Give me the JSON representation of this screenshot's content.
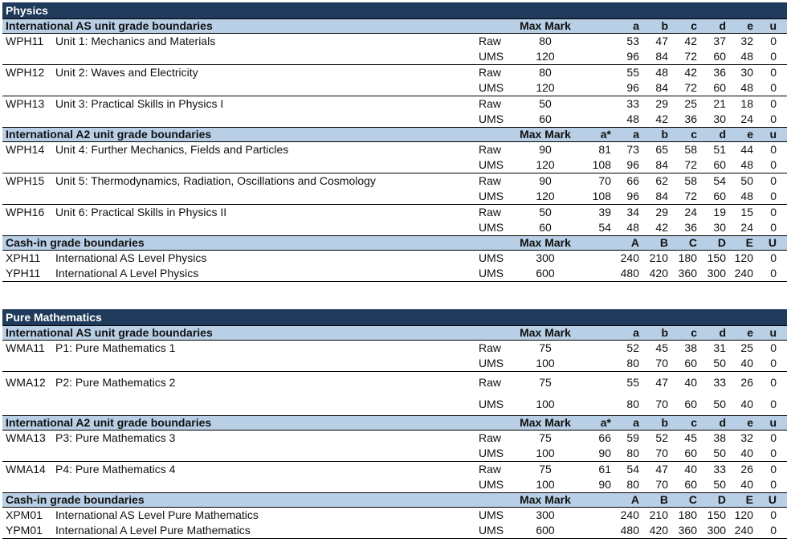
{
  "sections": [
    {
      "title": "Physics",
      "groups": [
        {
          "kind": "unit",
          "heading": "International AS unit grade boundaries",
          "max_label": "Max Mark",
          "grade_labels": [
            "",
            "a",
            "b",
            "c",
            "d",
            "e",
            "u"
          ],
          "units": [
            {
              "code": "WPH11",
              "name": "Unit 1: Mechanics and Materials",
              "rows": [
                {
                  "type": "Raw",
                  "max": "80",
                  "astar": "",
                  "grades": [
                    "53",
                    "47",
                    "42",
                    "37",
                    "32",
                    "0"
                  ]
                },
                {
                  "type": "UMS",
                  "max": "120",
                  "astar": "",
                  "grades": [
                    "96",
                    "84",
                    "72",
                    "60",
                    "48",
                    "0"
                  ]
                }
              ]
            },
            {
              "code": "WPH12",
              "name": "Unit 2: Waves and Electricity",
              "rows": [
                {
                  "type": "Raw",
                  "max": "80",
                  "astar": "",
                  "grades": [
                    "55",
                    "48",
                    "42",
                    "36",
                    "30",
                    "0"
                  ]
                },
                {
                  "type": "UMS",
                  "max": "120",
                  "astar": "",
                  "grades": [
                    "96",
                    "84",
                    "72",
                    "60",
                    "48",
                    "0"
                  ]
                }
              ]
            },
            {
              "code": "WPH13",
              "name": "Unit 3: Practical Skills in Physics I",
              "rows": [
                {
                  "type": "Raw",
                  "max": "50",
                  "astar": "",
                  "grades": [
                    "33",
                    "29",
                    "25",
                    "21",
                    "18",
                    "0"
                  ]
                },
                {
                  "type": "UMS",
                  "max": "60",
                  "astar": "",
                  "grades": [
                    "48",
                    "42",
                    "36",
                    "30",
                    "24",
                    "0"
                  ]
                }
              ]
            }
          ]
        },
        {
          "kind": "unit",
          "heading": "International A2 unit grade boundaries",
          "max_label": "Max Mark",
          "grade_labels": [
            "a*",
            "a",
            "b",
            "c",
            "d",
            "e",
            "u"
          ],
          "units": [
            {
              "code": "WPH14",
              "name": "Unit 4: Further Mechanics, Fields and Particles",
              "rows": [
                {
                  "type": "Raw",
                  "max": "90",
                  "astar": "81",
                  "grades": [
                    "73",
                    "65",
                    "58",
                    "51",
                    "44",
                    "0"
                  ]
                },
                {
                  "type": "UMS",
                  "max": "120",
                  "astar": "108",
                  "grades": [
                    "96",
                    "84",
                    "72",
                    "60",
                    "48",
                    "0"
                  ]
                }
              ]
            },
            {
              "code": "WPH15",
              "name": "Unit 5: Thermodynamics, Radiation, Oscillations and Cosmology",
              "rows": [
                {
                  "type": "Raw",
                  "max": "90",
                  "astar": "70",
                  "grades": [
                    "66",
                    "62",
                    "58",
                    "54",
                    "50",
                    "0"
                  ]
                },
                {
                  "type": "UMS",
                  "max": "120",
                  "astar": "108",
                  "grades": [
                    "96",
                    "84",
                    "72",
                    "60",
                    "48",
                    "0"
                  ]
                }
              ]
            },
            {
              "code": "WPH16",
              "name": "Unit 6: Practical Skills in Physics II",
              "rows": [
                {
                  "type": "Raw",
                  "max": "50",
                  "astar": "39",
                  "grades": [
                    "34",
                    "29",
                    "24",
                    "19",
                    "15",
                    "0"
                  ]
                },
                {
                  "type": "UMS",
                  "max": "60",
                  "astar": "54",
                  "grades": [
                    "48",
                    "42",
                    "36",
                    "30",
                    "24",
                    "0"
                  ]
                }
              ]
            }
          ]
        },
        {
          "kind": "cashin",
          "heading": "Cash-in grade boundaries",
          "max_label": "Max Mark",
          "grade_labels": [
            "",
            "A",
            "B",
            "C",
            "D",
            "E",
            "U"
          ],
          "rows": [
            {
              "code": "XPH11",
              "name": "International AS Level Physics",
              "type": "UMS",
              "max": "300",
              "grades": [
                "240",
                "210",
                "180",
                "150",
                "120",
                "0"
              ]
            },
            {
              "code": "YPH11",
              "name": "International A Level Physics",
              "type": "UMS",
              "max": "600",
              "grades": [
                "480",
                "420",
                "360",
                "300",
                "240",
                "0"
              ]
            }
          ]
        }
      ]
    },
    {
      "title": "Pure Mathematics",
      "groups": [
        {
          "kind": "unit",
          "heading": "International AS unit grade boundaries",
          "max_label": "Max Mark",
          "grade_labels": [
            "",
            "a",
            "b",
            "c",
            "d",
            "e",
            "u"
          ],
          "units": [
            {
              "code": "WMA11",
              "name": "P1: Pure Mathematics 1",
              "rows": [
                {
                  "type": "Raw",
                  "max": "75",
                  "astar": "",
                  "grades": [
                    "52",
                    "45",
                    "38",
                    "31",
                    "25",
                    "0"
                  ]
                },
                {
                  "type": "UMS",
                  "max": "100",
                  "astar": "",
                  "grades": [
                    "80",
                    "70",
                    "60",
                    "50",
                    "40",
                    "0"
                  ]
                }
              ]
            },
            {
              "code": "WMA12",
              "name": "P2: Pure Mathematics 2",
              "rows": [
                {
                  "type": "Raw",
                  "max": "75",
                  "astar": "",
                  "grades": [
                    "55",
                    "47",
                    "40",
                    "33",
                    "26",
                    "0"
                  ]
                },
                {
                  "type": "UMS",
                  "max": "100",
                  "astar": "",
                  "grades": [
                    "80",
                    "70",
                    "60",
                    "50",
                    "40",
                    "0"
                  ]
                }
              ]
            }
          ]
        },
        {
          "kind": "unit",
          "heading": "International A2 unit grade boundaries",
          "max_label": "Max Mark",
          "grade_labels": [
            "a*",
            "a",
            "b",
            "c",
            "d",
            "e",
            "u"
          ],
          "units": [
            {
              "code": "WMA13",
              "name": "P3: Pure Mathematics 3",
              "rows": [
                {
                  "type": "Raw",
                  "max": "75",
                  "astar": "66",
                  "grades": [
                    "59",
                    "52",
                    "45",
                    "38",
                    "32",
                    "0"
                  ]
                },
                {
                  "type": "UMS",
                  "max": "100",
                  "astar": "90",
                  "grades": [
                    "80",
                    "70",
                    "60",
                    "50",
                    "40",
                    "0"
                  ]
                }
              ]
            },
            {
              "code": "WMA14",
              "name": "P4: Pure Mathematics 4",
              "rows": [
                {
                  "type": "Raw",
                  "max": "75",
                  "astar": "61",
                  "grades": [
                    "54",
                    "47",
                    "40",
                    "33",
                    "26",
                    "0"
                  ]
                },
                {
                  "type": "UMS",
                  "max": "100",
                  "astar": "90",
                  "grades": [
                    "80",
                    "70",
                    "60",
                    "50",
                    "40",
                    "0"
                  ]
                }
              ]
            }
          ]
        },
        {
          "kind": "cashin",
          "heading": "Cash-in grade boundaries",
          "max_label": "Max Mark",
          "grade_labels": [
            "",
            "A",
            "B",
            "C",
            "D",
            "E",
            "U"
          ],
          "rows": [
            {
              "code": "XPM01",
              "name": "International AS Level Pure Mathematics",
              "type": "UMS",
              "max": "300",
              "grades": [
                "240",
                "210",
                "180",
                "150",
                "120",
                "0"
              ]
            },
            {
              "code": "YPM01",
              "name": "International A Level Pure Mathematics",
              "type": "UMS",
              "max": "600",
              "grades": [
                "480",
                "420",
                "360",
                "300",
                "240",
                "0"
              ]
            }
          ]
        }
      ]
    }
  ],
  "colors": {
    "title_bar": "#1f3a5a",
    "band": "#b8cfe6"
  }
}
